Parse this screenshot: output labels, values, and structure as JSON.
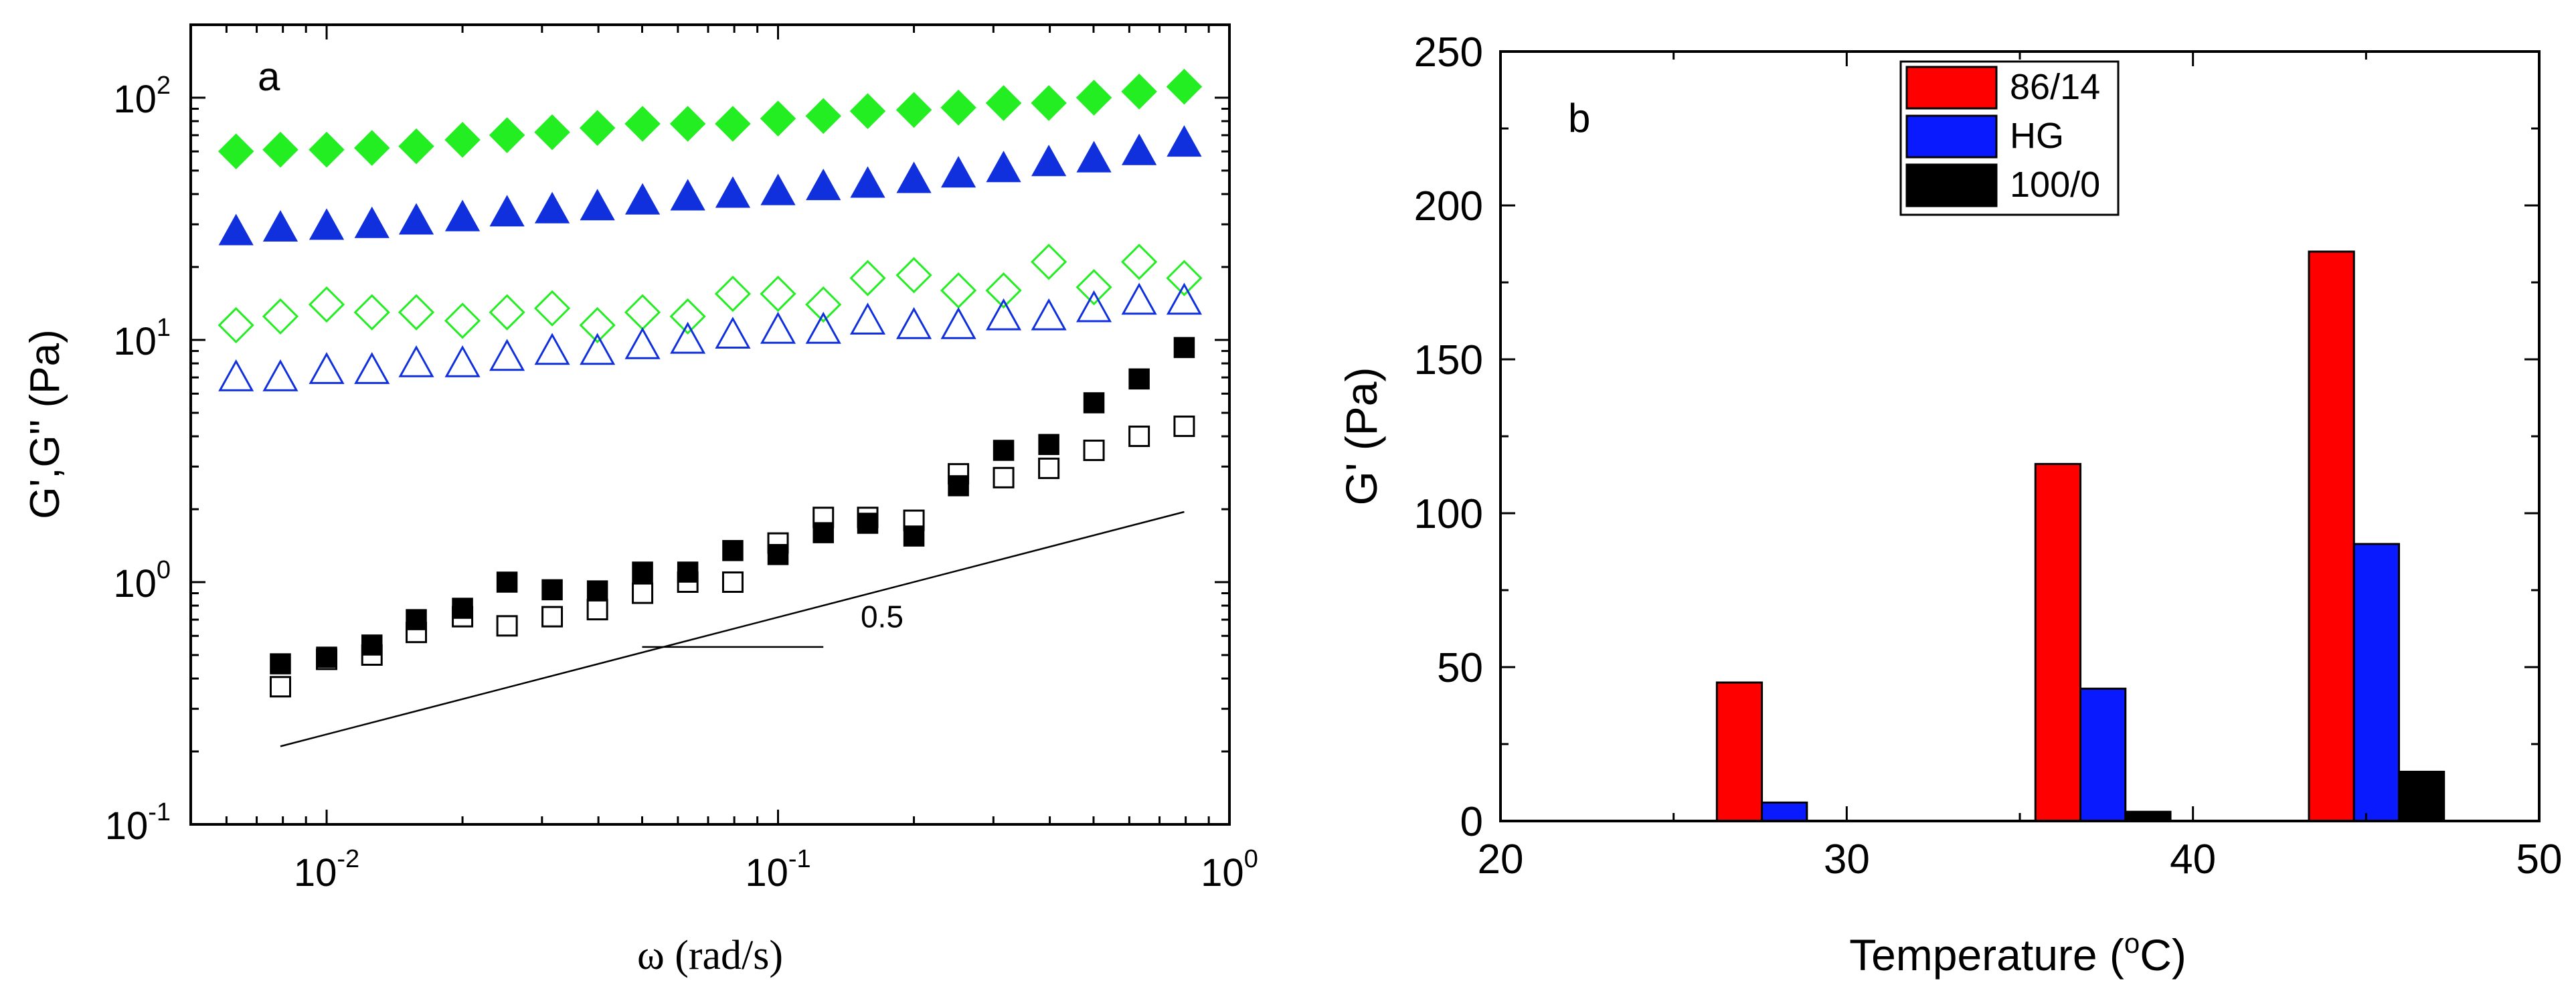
{
  "chart_data": [
    {
      "panel_label": "a",
      "type": "scatter",
      "xscale": "log",
      "yscale": "log",
      "xlim": [
        0.005,
        1
      ],
      "ylim": [
        0.1,
        200
      ],
      "xlabel": "ω (rad/s)",
      "ylabel": "G',G'' (Pa)",
      "x_ticks": [
        {
          "value": 0.01,
          "base": "10",
          "exp": "-2"
        },
        {
          "value": 0.1,
          "base": "10",
          "exp": "-1"
        },
        {
          "value": 1,
          "base": "10",
          "exp": "0"
        }
      ],
      "y_ticks": [
        {
          "value": 0.1,
          "base": "10",
          "exp": "-1"
        },
        {
          "value": 1,
          "base": "10",
          "exp": "0"
        },
        {
          "value": 10,
          "base": "10",
          "exp": "1"
        },
        {
          "value": 100,
          "base": "10",
          "exp": "2"
        }
      ],
      "series": [
        {
          "name": "G' green diamonds (filled)",
          "marker": "diamond",
          "filled": true,
          "color": "#22ee22",
          "x": [
            0.0063,
            0.0079,
            0.01,
            0.0126,
            0.0158,
            0.02,
            0.0251,
            0.0316,
            0.0398,
            0.0501,
            0.0631,
            0.0794,
            0.1,
            0.126,
            0.158,
            0.2,
            0.251,
            0.316,
            0.398,
            0.501,
            0.631,
            0.794
          ],
          "y": [
            60,
            61,
            61,
            62,
            63,
            67,
            70,
            72,
            75,
            78,
            78,
            78,
            82,
            84,
            88,
            89,
            91,
            95,
            95,
            100,
            106,
            111
          ]
        },
        {
          "name": "G' blue triangles (filled)",
          "marker": "triangle",
          "filled": true,
          "color": "#1030dd",
          "x": [
            0.0063,
            0.0079,
            0.01,
            0.0126,
            0.0158,
            0.02,
            0.0251,
            0.0316,
            0.0398,
            0.0501,
            0.0631,
            0.0794,
            0.1,
            0.126,
            0.158,
            0.2,
            0.251,
            0.316,
            0.398,
            0.501,
            0.631,
            0.794
          ],
          "y": [
            28,
            29,
            29.5,
            30,
            31,
            32,
            33.5,
            34.5,
            35.5,
            37.5,
            39,
            40,
            41,
            43,
            44,
            46,
            48.5,
            51,
            54,
            56,
            60,
            65
          ]
        },
        {
          "name": "G'' green diamonds (open)",
          "marker": "diamond",
          "filled": false,
          "color": "#22ee22",
          "x": [
            0.0063,
            0.0079,
            0.01,
            0.0126,
            0.0158,
            0.02,
            0.0251,
            0.0316,
            0.0398,
            0.0501,
            0.0631,
            0.0794,
            0.1,
            0.126,
            0.158,
            0.2,
            0.251,
            0.316,
            0.398,
            0.501,
            0.631,
            0.794
          ],
          "y": [
            11.5,
            12.5,
            14,
            13,
            13,
            12,
            13,
            13.5,
            11.5,
            13,
            12.5,
            15.5,
            15.5,
            14,
            18,
            18.5,
            16,
            16,
            21,
            16.5,
            21,
            18
          ]
        },
        {
          "name": "G'' blue triangles (open)",
          "marker": "triangle",
          "filled": false,
          "color": "#1030dd",
          "x": [
            0.0063,
            0.0079,
            0.01,
            0.0126,
            0.0158,
            0.02,
            0.0251,
            0.0316,
            0.0398,
            0.0501,
            0.0631,
            0.0794,
            0.1,
            0.126,
            0.158,
            0.2,
            0.251,
            0.316,
            0.398,
            0.501,
            0.631,
            0.794
          ],
          "y": [
            7,
            7,
            7.5,
            7.5,
            8,
            8,
            8.5,
            9,
            9,
            9.5,
            10,
            10.5,
            11,
            11,
            12,
            11.5,
            11.5,
            12.5,
            12.5,
            13.5,
            14.5,
            14.5
          ]
        },
        {
          "name": "G' black squares (filled)",
          "marker": "square",
          "filled": true,
          "color": "#000000",
          "x": [
            0.0079,
            0.01,
            0.0126,
            0.0158,
            0.02,
            0.0251,
            0.0316,
            0.0398,
            0.0501,
            0.0631,
            0.0794,
            0.1,
            0.126,
            0.158,
            0.2,
            0.251,
            0.316,
            0.398,
            0.501,
            0.631,
            0.794
          ],
          "y": [
            0.46,
            0.49,
            0.55,
            0.7,
            0.78,
            1.0,
            0.93,
            0.92,
            1.1,
            1.1,
            1.35,
            1.3,
            1.6,
            1.75,
            1.55,
            2.5,
            3.5,
            3.7,
            5.5,
            6.9,
            9.3
          ]
        },
        {
          "name": "G'' black squares (open)",
          "marker": "square",
          "filled": false,
          "color": "#000000",
          "x": [
            0.0079,
            0.01,
            0.0126,
            0.0158,
            0.02,
            0.0251,
            0.0316,
            0.0398,
            0.0501,
            0.0631,
            0.0794,
            0.1,
            0.126,
            0.158,
            0.2,
            0.251,
            0.316,
            0.398,
            0.501,
            0.631,
            0.794
          ],
          "y": [
            0.37,
            0.48,
            0.5,
            0.62,
            0.72,
            0.66,
            0.72,
            0.77,
            0.9,
            1.0,
            1.0,
            1.45,
            1.85,
            1.85,
            1.8,
            2.8,
            2.7,
            2.95,
            3.5,
            4.0,
            4.4
          ]
        }
      ],
      "annotations": [
        {
          "type": "line",
          "x": [
            0.0079,
            0.794
          ],
          "y": [
            0.21,
            1.95
          ]
        },
        {
          "type": "line",
          "x": [
            0.05,
            0.126
          ],
          "y": [
            0.54,
            0.54
          ]
        },
        {
          "type": "text",
          "text": "0.5",
          "x": 0.17,
          "y": 0.65
        }
      ]
    },
    {
      "panel_label": "b",
      "type": "bar",
      "xlabel_main": "Temperature (",
      "xlabel_sup": "o",
      "xlabel_end": "C)",
      "ylabel": "G' (Pa)",
      "xlim": [
        20,
        50
      ],
      "ylim": [
        0,
        250
      ],
      "x_ticks": [
        "20",
        "30",
        "40",
        "50"
      ],
      "y_ticks": [
        "0",
        "50",
        "100",
        "150",
        "200",
        "250"
      ],
      "bar_width": 1.3,
      "series": [
        {
          "name": "86/14",
          "color": "#ff0000",
          "x": [
            26.9,
            36.1,
            44.0
          ],
          "values": [
            45,
            116,
            185
          ]
        },
        {
          "name": "HG",
          "color": "#0a1aff",
          "x": [
            28.2,
            37.4,
            45.3
          ],
          "values": [
            6,
            43,
            90
          ]
        },
        {
          "name": "100/0",
          "color": "#000000",
          "x": [
            29.5,
            38.7,
            46.6
          ],
          "values": [
            0,
            3,
            16
          ]
        }
      ],
      "legend": {
        "position": "top-center",
        "entries": [
          "86/14",
          "HG",
          "100/0"
        ]
      }
    }
  ]
}
